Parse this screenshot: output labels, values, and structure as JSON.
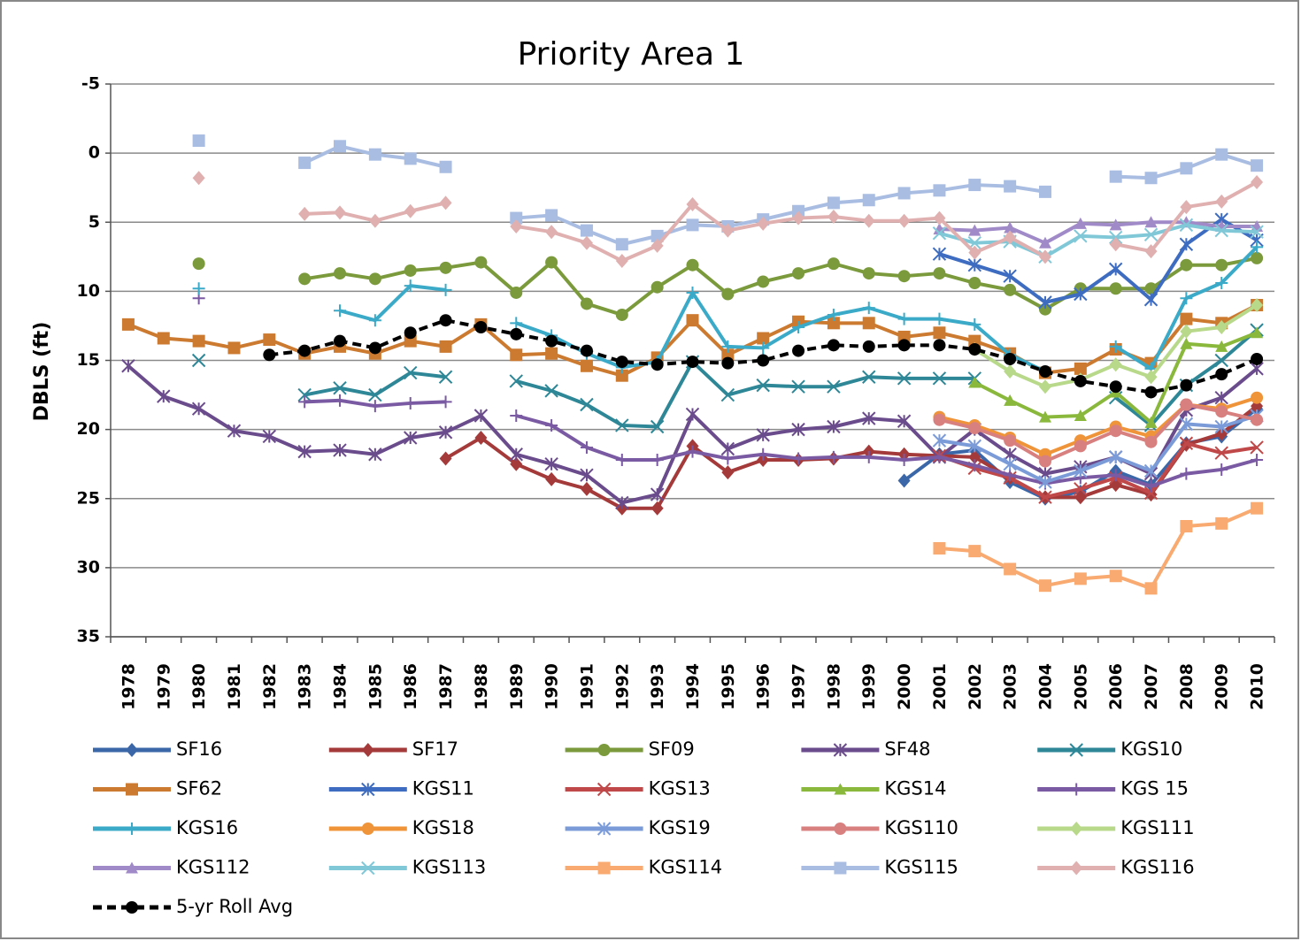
{
  "chart_data": {
    "type": "line",
    "title": "Priority Area 1",
    "y_label": "DBLS (ft)",
    "categories": [
      "1978",
      "1979",
      "1980",
      "1981",
      "1982",
      "1983",
      "1984",
      "1985",
      "1986",
      "1987",
      "1988",
      "1989",
      "1990",
      "1991",
      "1992",
      "1993",
      "1994",
      "1995",
      "1996",
      "1997",
      "1998",
      "1999",
      "2000",
      "2001",
      "2002",
      "2003",
      "2004",
      "2005",
      "2006",
      "2007",
      "2008",
      "2009",
      "2010"
    ],
    "ylim": [
      -5,
      35
    ],
    "y_inverted": true,
    "yticks": [
      -5,
      0,
      5,
      10,
      15,
      20,
      25,
      30,
      35
    ],
    "grid": true,
    "series": [
      {
        "name": "SF16",
        "color": "#3b67a9",
        "marker": "diamond",
        "values": [
          null,
          null,
          null,
          null,
          null,
          null,
          null,
          null,
          null,
          null,
          null,
          null,
          null,
          null,
          null,
          null,
          null,
          null,
          null,
          null,
          null,
          null,
          23.7,
          21.8,
          21.5,
          23.8,
          25.0,
          24.5,
          23.0,
          24.0,
          21.0,
          20.5,
          18.5
        ]
      },
      {
        "name": "SF17",
        "color": "#a53a3a",
        "marker": "diamond",
        "values": [
          null,
          null,
          null,
          null,
          null,
          null,
          null,
          null,
          null,
          22.1,
          20.6,
          22.5,
          23.6,
          24.3,
          25.7,
          25.7,
          21.2,
          23.1,
          22.2,
          22.2,
          22.1,
          21.6,
          21.8,
          21.9,
          22.0,
          23.5,
          24.9,
          24.9,
          24.0,
          24.7,
          21.1,
          20.3,
          18.3
        ]
      },
      {
        "name": "SF09",
        "color": "#7a9a3c",
        "marker": "circle",
        "values": [
          null,
          null,
          8.0,
          null,
          null,
          9.1,
          8.7,
          9.1,
          8.5,
          8.3,
          7.9,
          10.1,
          7.9,
          10.9,
          11.7,
          9.7,
          8.1,
          10.2,
          9.3,
          8.7,
          8.0,
          8.7,
          8.9,
          8.7,
          9.4,
          9.9,
          11.3,
          9.8,
          9.8,
          9.8,
          8.1,
          8.1,
          7.6
        ]
      },
      {
        "name": "SF48",
        "color": "#6a4b8c",
        "marker": "star",
        "values": [
          15.4,
          17.6,
          18.5,
          20.1,
          20.5,
          21.6,
          21.5,
          21.8,
          20.6,
          20.2,
          19.0,
          21.8,
          22.5,
          23.3,
          25.3,
          24.7,
          18.9,
          21.4,
          20.4,
          20.0,
          19.8,
          19.2,
          19.4,
          22.0,
          20.0,
          21.8,
          23.2,
          22.7,
          22.0,
          23.2,
          18.6,
          17.7,
          15.6
        ]
      },
      {
        "name": "KGS10",
        "color": "#2e8797",
        "marker": "x",
        "values": [
          null,
          null,
          15.0,
          null,
          null,
          17.5,
          17.0,
          17.5,
          15.9,
          16.2,
          null,
          16.5,
          17.2,
          18.2,
          19.7,
          19.8,
          15.1,
          17.5,
          16.8,
          16.9,
          16.9,
          16.2,
          16.3,
          16.3,
          16.3,
          null,
          null,
          null,
          17.7,
          19.7,
          16.8,
          15.0,
          12.8
        ]
      },
      {
        "name": "SF62",
        "color": "#cc7a30",
        "marker": "square",
        "values": [
          12.4,
          13.4,
          13.6,
          14.1,
          13.5,
          14.5,
          14.0,
          14.5,
          13.6,
          14.0,
          12.4,
          14.6,
          14.5,
          15.4,
          16.1,
          14.8,
          12.1,
          14.6,
          13.4,
          12.2,
          12.3,
          12.3,
          13.3,
          13.0,
          13.6,
          14.5,
          15.9,
          15.6,
          14.2,
          15.2,
          12.0,
          12.3,
          11.0
        ]
      },
      {
        "name": "KGS11",
        "color": "#3d6cc0",
        "marker": "star",
        "values": [
          null,
          null,
          null,
          null,
          null,
          null,
          null,
          null,
          null,
          null,
          null,
          null,
          null,
          null,
          null,
          null,
          null,
          null,
          null,
          null,
          null,
          null,
          null,
          7.3,
          8.1,
          8.9,
          10.8,
          10.2,
          8.4,
          10.6,
          6.6,
          4.8,
          6.3
        ]
      },
      {
        "name": "KGS13",
        "color": "#c04848",
        "marker": "x",
        "values": [
          null,
          null,
          null,
          null,
          null,
          null,
          null,
          null,
          null,
          null,
          null,
          null,
          null,
          null,
          null,
          null,
          null,
          null,
          null,
          null,
          null,
          null,
          null,
          21.9,
          22.8,
          23.5,
          24.9,
          24.3,
          23.5,
          24.6,
          21.0,
          21.7,
          21.3
        ]
      },
      {
        "name": "KGS14",
        "color": "#8ab83c",
        "marker": "triangle",
        "values": [
          null,
          null,
          null,
          null,
          null,
          null,
          null,
          null,
          null,
          null,
          null,
          null,
          null,
          null,
          null,
          null,
          null,
          null,
          null,
          null,
          null,
          null,
          null,
          null,
          16.6,
          17.9,
          19.1,
          19.0,
          17.3,
          19.5,
          13.8,
          14.0,
          13.0
        ]
      },
      {
        "name": "KGS 15",
        "color": "#7a5aa2",
        "marker": "plus",
        "values": [
          null,
          null,
          10.5,
          null,
          null,
          18.0,
          17.9,
          18.3,
          18.1,
          18.0,
          null,
          19.0,
          19.7,
          21.3,
          22.2,
          22.2,
          21.6,
          22.1,
          21.8,
          22.1,
          22.0,
          22.0,
          22.2,
          22.0,
          22.6,
          23.3,
          23.9,
          23.5,
          23.3,
          24.1,
          23.2,
          22.9,
          22.2
        ]
      },
      {
        "name": "KGS16",
        "color": "#3aaac8",
        "marker": "plus",
        "values": [
          null,
          null,
          9.8,
          null,
          null,
          null,
          11.4,
          12.1,
          9.6,
          9.9,
          null,
          12.3,
          13.2,
          14.5,
          15.5,
          15.1,
          10.1,
          14.0,
          14.1,
          12.6,
          11.7,
          11.2,
          12.0,
          12.0,
          12.4,
          14.6,
          15.8,
          null,
          14.0,
          15.6,
          10.5,
          9.4,
          6.8
        ]
      },
      {
        "name": "KGS18",
        "color": "#f0943a",
        "marker": "circle",
        "values": [
          null,
          null,
          null,
          null,
          null,
          null,
          null,
          null,
          null,
          null,
          null,
          null,
          null,
          null,
          null,
          null,
          null,
          null,
          null,
          null,
          null,
          null,
          null,
          19.1,
          19.7,
          20.6,
          21.8,
          20.8,
          19.8,
          20.5,
          18.2,
          18.5,
          17.7
        ]
      },
      {
        "name": "KGS19",
        "color": "#7b9bd8",
        "marker": "star",
        "values": [
          null,
          null,
          null,
          null,
          null,
          null,
          null,
          null,
          null,
          null,
          null,
          null,
          null,
          null,
          null,
          null,
          null,
          null,
          null,
          null,
          null,
          null,
          null,
          20.8,
          21.2,
          22.5,
          23.8,
          23.0,
          22.0,
          23.0,
          19.6,
          19.8,
          19.0
        ]
      },
      {
        "name": "KGS110",
        "color": "#d88080",
        "marker": "circle",
        "values": [
          null,
          null,
          null,
          null,
          null,
          null,
          null,
          null,
          null,
          null,
          null,
          null,
          null,
          null,
          null,
          null,
          null,
          null,
          null,
          null,
          null,
          null,
          null,
          19.3,
          19.9,
          20.8,
          22.3,
          21.2,
          20.1,
          20.9,
          18.2,
          18.7,
          19.3
        ]
      },
      {
        "name": "KGS111",
        "color": "#b8d88a",
        "marker": "diamond",
        "values": [
          null,
          null,
          null,
          null,
          null,
          null,
          null,
          null,
          null,
          null,
          null,
          null,
          null,
          null,
          null,
          null,
          null,
          null,
          null,
          null,
          null,
          null,
          null,
          null,
          14.2,
          15.8,
          16.9,
          16.4,
          15.3,
          16.2,
          12.9,
          12.6,
          11.0
        ]
      },
      {
        "name": "KGS112",
        "color": "#a08ac8",
        "marker": "triangle",
        "values": [
          null,
          null,
          null,
          null,
          null,
          null,
          null,
          null,
          null,
          null,
          null,
          null,
          null,
          null,
          null,
          null,
          null,
          null,
          null,
          null,
          null,
          null,
          null,
          5.5,
          5.6,
          5.4,
          6.5,
          5.1,
          5.2,
          5.0,
          5.0,
          5.3,
          5.3
        ]
      },
      {
        "name": "KGS113",
        "color": "#80c8d8",
        "marker": "x",
        "values": [
          null,
          null,
          null,
          null,
          null,
          null,
          null,
          null,
          null,
          null,
          null,
          null,
          null,
          null,
          null,
          null,
          null,
          null,
          null,
          null,
          null,
          null,
          null,
          5.8,
          6.5,
          6.4,
          7.5,
          6.0,
          6.1,
          5.9,
          5.2,
          5.6,
          5.7
        ]
      },
      {
        "name": "KGS114",
        "color": "#f8aa70",
        "marker": "square",
        "values": [
          null,
          null,
          null,
          null,
          null,
          null,
          null,
          null,
          null,
          null,
          null,
          null,
          null,
          null,
          null,
          null,
          null,
          null,
          null,
          null,
          null,
          null,
          null,
          28.6,
          28.8,
          30.1,
          31.3,
          30.8,
          30.6,
          31.5,
          27.0,
          26.8,
          25.7
        ]
      },
      {
        "name": "KGS115",
        "color": "#a9bde2",
        "marker": "square",
        "values": [
          null,
          null,
          -0.9,
          null,
          null,
          0.7,
          -0.5,
          0.1,
          0.4,
          1.0,
          null,
          4.7,
          4.5,
          5.6,
          6.6,
          6.0,
          5.2,
          5.3,
          4.8,
          4.2,
          3.6,
          3.4,
          2.9,
          2.7,
          2.3,
          2.4,
          2.8,
          null,
          1.7,
          1.8,
          1.1,
          0.1,
          0.9
        ]
      },
      {
        "name": "KGS116",
        "color": "#e0b0b0",
        "marker": "diamond",
        "values": [
          null,
          null,
          1.8,
          null,
          null,
          4.4,
          4.3,
          4.9,
          4.2,
          3.6,
          null,
          5.3,
          5.7,
          6.5,
          7.8,
          6.7,
          3.7,
          5.6,
          5.1,
          4.7,
          4.6,
          4.9,
          4.9,
          4.7,
          7.2,
          6.1,
          7.5,
          null,
          6.6,
          7.1,
          3.9,
          3.5,
          2.1
        ]
      },
      {
        "name": "5-yr Roll Avg",
        "color": "#000000",
        "marker": "circle",
        "dashed": true,
        "values": [
          null,
          null,
          null,
          null,
          14.6,
          14.3,
          13.6,
          14.1,
          13.0,
          12.1,
          12.6,
          13.1,
          13.6,
          14.3,
          15.1,
          15.3,
          15.1,
          15.2,
          15.0,
          14.3,
          13.9,
          14.0,
          13.9,
          13.9,
          14.2,
          14.9,
          15.8,
          16.5,
          16.9,
          17.3,
          16.8,
          16.0,
          14.9
        ]
      }
    ]
  }
}
